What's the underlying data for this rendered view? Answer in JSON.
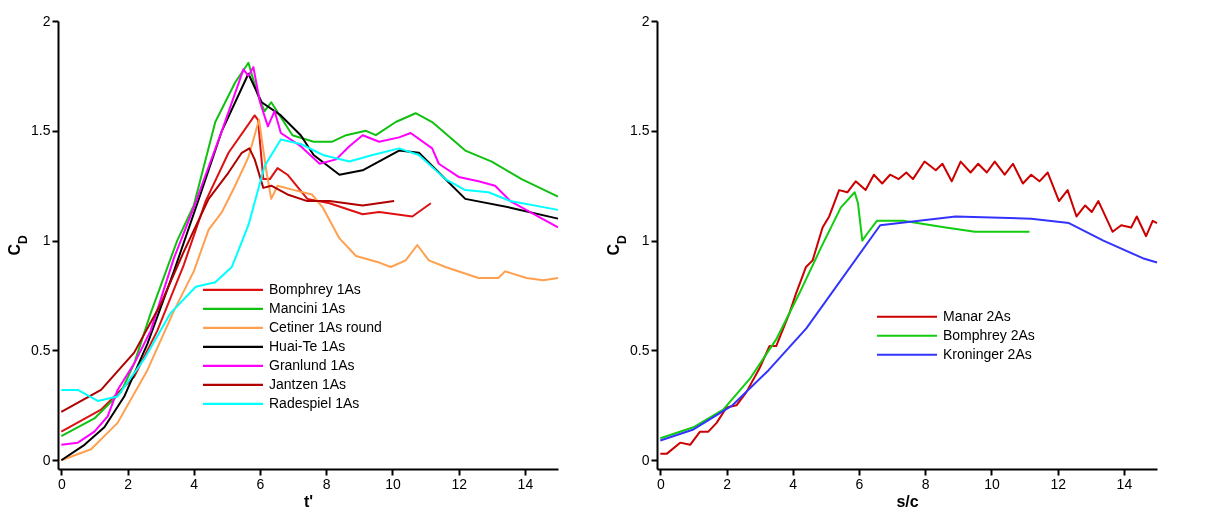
{
  "chart_data": [
    {
      "type": "line",
      "xlabel": "t'",
      "ylabel": "C$_{D}$",
      "xlim": [
        -0.1,
        15
      ],
      "ylim": [
        -0.04,
        2
      ],
      "xticks": [
        0,
        2,
        4,
        6,
        8,
        10,
        12,
        14
      ],
      "yticks": [
        0,
        0.5,
        1,
        1.5,
        2
      ],
      "grid": false,
      "legend": "bottom",
      "marker": "none",
      "line_style": "solid",
      "series": [
        {
          "name": "Bomphrey 1As",
          "color": "#dd1111",
          "x": [
            0,
            1.2,
            2.2,
            2.9,
            3.7,
            4.36,
            5.05,
            5.84,
            5.94,
            6.1,
            6.3,
            6.53,
            6.83,
            7.43,
            8.1,
            9.1,
            9.6,
            10.6,
            11.16
          ],
          "values": [
            0.13,
            0.23,
            0.38,
            0.59,
            0.89,
            1.18,
            1.4,
            1.57,
            1.55,
            1.28,
            1.28,
            1.33,
            1.3,
            1.19,
            1.17,
            1.12,
            1.13,
            1.11,
            1.17
          ]
        },
        {
          "name": "Mancini 1As",
          "color": "#11c011",
          "x": [
            0,
            1,
            1.8,
            2.2,
            2.7,
            3.5,
            4,
            4.65,
            5.25,
            5.65,
            5.94,
            6.14,
            6.34,
            6.98,
            7.62,
            8.17,
            8.6,
            9.2,
            9.5,
            10.1,
            10.7,
            11.2,
            12.2,
            13,
            13.9,
            15
          ],
          "values": [
            0.11,
            0.19,
            0.31,
            0.44,
            0.67,
            1,
            1.16,
            1.54,
            1.72,
            1.81,
            1.66,
            1.59,
            1.63,
            1.48,
            1.45,
            1.45,
            1.48,
            1.5,
            1.48,
            1.54,
            1.58,
            1.54,
            1.41,
            1.36,
            1.28,
            1.2
          ]
        },
        {
          "name": "Cetiner 1As round",
          "color": "#ffa050",
          "x": [
            0,
            0.9,
            1.7,
            2.6,
            3.4,
            4,
            4.45,
            4.85,
            5.25,
            5.65,
            5.97,
            6.2,
            6.34,
            6.53,
            7.03,
            7.57,
            7.9,
            8.4,
            8.9,
            9.6,
            9.95,
            10.4,
            10.75,
            11.1,
            11.6,
            12.6,
            13.2,
            13.4,
            14.05,
            14.55,
            15
          ],
          "values": [
            0,
            0.05,
            0.17,
            0.41,
            0.68,
            0.86,
            1.05,
            1.13,
            1.25,
            1.38,
            1.55,
            1.31,
            1.19,
            1.25,
            1.23,
            1.21,
            1.15,
            1.01,
            0.93,
            0.9,
            0.88,
            0.91,
            0.98,
            0.91,
            0.88,
            0.83,
            0.83,
            0.86,
            0.83,
            0.82,
            0.83
          ]
        },
        {
          "name": "Huai-Te 1As",
          "color": "#000000",
          "x": [
            0,
            0.7,
            1.3,
            1.9,
            2.6,
            3.4,
            4.2,
            4.85,
            5.65,
            6.05,
            6.63,
            7.23,
            7.62,
            8.4,
            9.1,
            10.2,
            10.8,
            11.4,
            12.2,
            13.56,
            15
          ],
          "values": [
            0,
            0.07,
            0.15,
            0.29,
            0.53,
            0.86,
            1.21,
            1.5,
            1.76,
            1.63,
            1.57,
            1.48,
            1.39,
            1.3,
            1.32,
            1.41,
            1.4,
            1.31,
            1.19,
            1.15,
            1.1
          ]
        },
        {
          "name": "Granlund 1As",
          "color": "#ff00ff",
          "x": [
            0,
            0.5,
            1,
            1.4,
            1.7,
            2.2,
            2.7,
            3.4,
            4,
            4.36,
            4.85,
            5.5,
            5.65,
            5.8,
            6,
            6.24,
            6.44,
            6.63,
            7.23,
            7.8,
            8.3,
            8.7,
            9.1,
            9.6,
            10.2,
            10.55,
            11.2,
            11.4,
            12,
            12.6,
            13.1,
            13.56,
            14.16,
            15
          ],
          "values": [
            0.07,
            0.08,
            0.13,
            0.2,
            0.32,
            0.44,
            0.59,
            0.92,
            1.15,
            1.3,
            1.5,
            1.78,
            1.75,
            1.79,
            1.63,
            1.52,
            1.59,
            1.49,
            1.43,
            1.35,
            1.37,
            1.43,
            1.48,
            1.45,
            1.47,
            1.49,
            1.42,
            1.35,
            1.29,
            1.27,
            1.25,
            1.18,
            1.13,
            1.06
          ]
        },
        {
          "name": "Jantzen 1As",
          "color": "#b00000",
          "x": [
            0,
            1.2,
            2.2,
            3,
            3.7,
            4.45,
            5.05,
            5.45,
            5.68,
            5.84,
            6.1,
            6.34,
            6.83,
            7.43,
            8.1,
            9.1,
            10.05
          ],
          "values": [
            0.22,
            0.32,
            0.49,
            0.71,
            0.95,
            1.19,
            1.31,
            1.4,
            1.42,
            1.37,
            1.24,
            1.25,
            1.21,
            1.18,
            1.18,
            1.16,
            1.18
          ]
        },
        {
          "name": "Radespiel 1As",
          "color": "#00ffff",
          "x": [
            0,
            0.5,
            1.1,
            1.7,
            2.5,
            3.3,
            4.06,
            4.65,
            5.15,
            5.65,
            6.14,
            6.63,
            7.23,
            7.9,
            8.7,
            9.4,
            10.2,
            10.8,
            11.6,
            12.2,
            12.9,
            13.56,
            15
          ],
          "values": [
            0.32,
            0.32,
            0.27,
            0.29,
            0.46,
            0.67,
            0.79,
            0.81,
            0.88,
            1.07,
            1.34,
            1.46,
            1.44,
            1.39,
            1.36,
            1.39,
            1.42,
            1.39,
            1.28,
            1.23,
            1.22,
            1.18,
            1.14
          ]
        }
      ]
    },
    {
      "type": "line",
      "xlabel": "s/c",
      "ylabel": "C$_{D}$",
      "xlim": [
        -0.1,
        15
      ],
      "ylim": [
        -0.04,
        2
      ],
      "xticks": [
        0,
        2,
        4,
        6,
        8,
        10,
        12,
        14
      ],
      "yticks": [
        0,
        0.5,
        1,
        1.5,
        2
      ],
      "grid": false,
      "legend": "right",
      "marker": "none",
      "line_style": "solid",
      "series": [
        {
          "name": "Manar 2As",
          "color": "#cc0000",
          "x": [
            0,
            0.2,
            0.6,
            0.9,
            1.2,
            1.45,
            1.7,
            2,
            2.3,
            2.6,
            3,
            3.3,
            3.5,
            3.9,
            4.1,
            4.4,
            4.6,
            4.9,
            5.1,
            5.4,
            5.65,
            5.9,
            6.2,
            6.45,
            6.7,
            6.94,
            7.2,
            7.43,
            7.63,
            7.98,
            8.32,
            8.52,
            8.8,
            9.07,
            9.37,
            9.6,
            9.86,
            10.1,
            10.4,
            10.65,
            10.95,
            11.2,
            11.45,
            11.7,
            12.04,
            12.3,
            12.57,
            12.83,
            13.03,
            13.23,
            13.66,
            13.92,
            14.22,
            14.39,
            14.67,
            14.87,
            15
          ],
          "values": [
            0.03,
            0.03,
            0.08,
            0.07,
            0.13,
            0.13,
            0.17,
            0.24,
            0.25,
            0.31,
            0.42,
            0.52,
            0.52,
            0.67,
            0.76,
            0.88,
            0.91,
            1.06,
            1.11,
            1.23,
            1.22,
            1.27,
            1.23,
            1.3,
            1.26,
            1.3,
            1.28,
            1.31,
            1.28,
            1.36,
            1.32,
            1.35,
            1.27,
            1.36,
            1.31,
            1.35,
            1.31,
            1.36,
            1.3,
            1.35,
            1.26,
            1.3,
            1.27,
            1.31,
            1.18,
            1.23,
            1.11,
            1.16,
            1.13,
            1.18,
            1.04,
            1.07,
            1.06,
            1.11,
            1.02,
            1.09,
            1.08
          ]
        },
        {
          "name": "Bomphrey 2As",
          "color": "#11cc11",
          "x": [
            0,
            1,
            1.9,
            2.7,
            3.5,
            4.2,
            4.86,
            5.45,
            5.87,
            5.97,
            6.1,
            6.24,
            6.54,
            7.33,
            8.62,
            9.5,
            10.2,
            11.15
          ],
          "values": [
            0.1,
            0.15,
            0.23,
            0.37,
            0.55,
            0.76,
            0.97,
            1.15,
            1.22,
            1.17,
            1,
            1.03,
            1.09,
            1.09,
            1.06,
            1.04,
            1.04,
            1.04
          ]
        },
        {
          "name": "Kroninger 2As",
          "color": "#3333ff",
          "x": [
            0,
            1,
            2.18,
            3.27,
            4.41,
            6.64,
            8.92,
            11.2,
            12.34,
            13.38,
            14.57,
            15
          ],
          "values": [
            0.09,
            0.14,
            0.25,
            0.41,
            0.6,
            1.07,
            1.11,
            1.1,
            1.08,
            1,
            0.92,
            0.9
          ]
        }
      ]
    }
  ]
}
